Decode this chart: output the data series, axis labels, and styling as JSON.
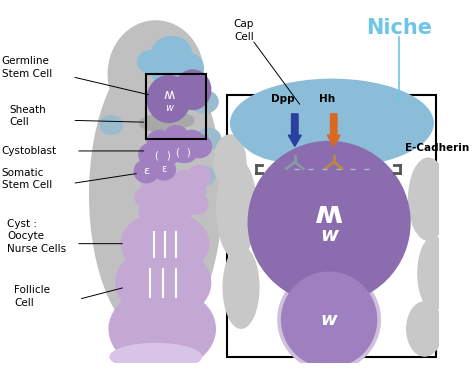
{
  "bg_color": "#ffffff",
  "purple_dark": "#8B6CAE",
  "purple_light": "#C4A8D4",
  "purple_mid": "#A080C0",
  "purple_very_light": "#D8C4E8",
  "gray_outer": "#C0C0C0",
  "gray_cell": "#B8B8B8",
  "gray_light": "#D0D0D0",
  "blue_cap": "#8BBDD9",
  "blue_niche_text": "#6EC6E6",
  "orange_arrow": "#D96820",
  "dark_blue_arrow": "#2A3F9E",
  "white": "#FFFFFF",
  "text_color": "#000000",
  "niche_text_color": "#6EC6E6",
  "title": "Niche",
  "labels": {
    "germline_stem_cell": "Germline\nStem Cell",
    "sheath_cell": "Sheath\nCell",
    "cystoblast": "Cystoblast",
    "somatic_stem_cell": "Somatic\nStem Cell",
    "cyst": "Cyst :\nOocyte\nNurse Cells",
    "follicle_cell": "Follicle\nCell",
    "cap_cell": "Cap\nCell",
    "dpp": "Dpp",
    "hh": "Hh",
    "e_cadherin": "E-Cadherin"
  }
}
